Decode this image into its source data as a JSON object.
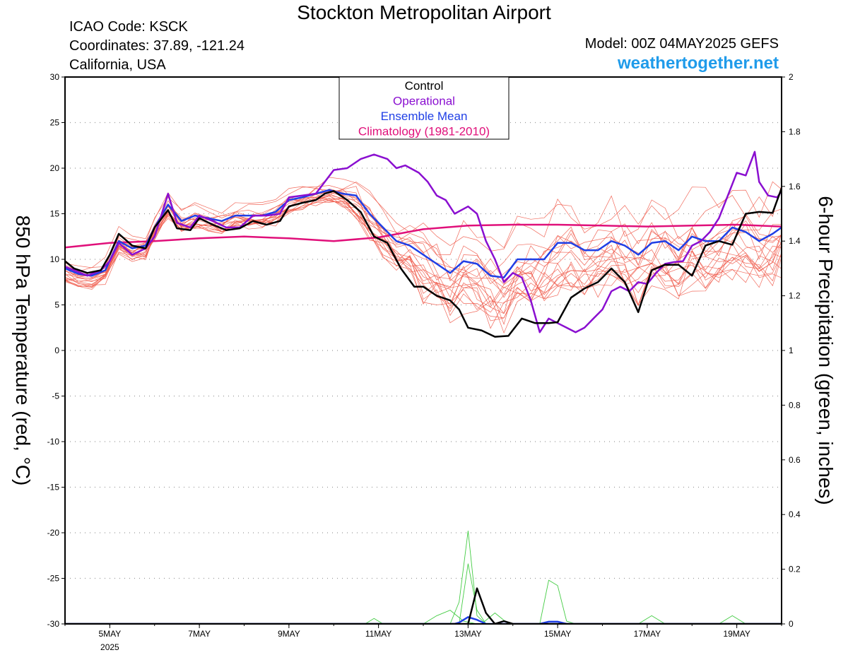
{
  "header": {
    "title": "Stockton Metropolitan Airport",
    "icao": "ICAO Code: KSCK",
    "coords": "Coordinates: 37.89, -121.24",
    "region": "California, USA",
    "model": "Model: 00Z 04MAY2025 GEFS",
    "brand": "weathertogether.net"
  },
  "chart_data": {
    "type": "line",
    "y_left_label": "850 hPa Temperature (red, °C)",
    "y_right_label": "6-hour Precipitation (green, inches)",
    "y_left_range": [
      -30,
      30
    ],
    "y_right_range": [
      0,
      2
    ],
    "y_left_ticks": [
      "30",
      "25",
      "20",
      "15",
      "10",
      "5",
      "0",
      "-5",
      "-10",
      "-15",
      "-20",
      "-25",
      "-30"
    ],
    "y_right_ticks": [
      "2",
      "1.8",
      "1.6",
      "1.4",
      "1.2",
      "1",
      "0.8",
      "0.6",
      "0.4",
      "0.2",
      "0"
    ],
    "x_range_days": [
      4.0,
      20.0
    ],
    "x_ticks": [
      {
        "day": 5,
        "label": "5MAY",
        "sub": "2025"
      },
      {
        "day": 7,
        "label": "7MAY",
        "sub": ""
      },
      {
        "day": 9,
        "label": "9MAY",
        "sub": ""
      },
      {
        "day": 11,
        "label": "11MAY",
        "sub": ""
      },
      {
        "day": 13,
        "label": "13MAY",
        "sub": ""
      },
      {
        "day": 15,
        "label": "15MAY",
        "sub": ""
      },
      {
        "day": 17,
        "label": "17MAY",
        "sub": ""
      },
      {
        "day": 19,
        "label": "19MAY",
        "sub": ""
      }
    ],
    "grid": "horizontal dotted",
    "legend_position": "top-center",
    "legend": [
      {
        "label": "Control",
        "color": "#000000"
      },
      {
        "label": "Operational",
        "color": "#8a0fd0"
      },
      {
        "label": "Ensemble Mean",
        "color": "#1f3fe6"
      },
      {
        "label": "Climatology (1981-2010)",
        "color": "#e0107a"
      }
    ],
    "colors": {
      "members": "#f05a4a",
      "control": "#000000",
      "operational": "#8a0fd0",
      "mean": "#1f3fe6",
      "climatology": "#e0107a",
      "precip_members": "#44cc44",
      "precip_mean": "#1f3fe6",
      "precip_control": "#000000"
    },
    "series": [
      {
        "key": "control",
        "x_day": [
          4.0,
          4.2,
          4.5,
          4.8,
          5.0,
          5.2,
          5.5,
          5.8,
          6.0,
          6.3,
          6.5,
          6.8,
          7.0,
          7.3,
          7.6,
          7.9,
          8.2,
          8.5,
          8.8,
          9.0,
          9.3,
          9.6,
          9.8,
          10.0,
          10.3,
          10.6,
          10.9,
          11.2,
          11.5,
          11.8,
          12.0,
          12.3,
          12.6,
          12.8,
          13.0,
          13.3,
          13.6,
          13.9,
          14.2,
          14.5,
          14.8,
          15.0,
          15.3,
          15.6,
          15.9,
          16.2,
          16.5,
          16.8,
          17.1,
          17.4,
          17.7,
          18.0,
          18.3,
          18.6,
          18.9,
          19.2,
          19.5,
          19.8,
          20.0
        ],
        "y": [
          9.8,
          9.0,
          8.5,
          8.8,
          10.5,
          12.8,
          11.5,
          11.2,
          13.5,
          15.4,
          13.4,
          13.2,
          14.5,
          13.8,
          13.2,
          13.4,
          14.2,
          13.8,
          14.2,
          15.8,
          16.2,
          16.5,
          17.2,
          17.5,
          16.5,
          15.2,
          12.5,
          11.8,
          9.0,
          7.0,
          7.0,
          6.0,
          5.5,
          4.5,
          2.5,
          2.2,
          1.5,
          1.6,
          3.5,
          3.0,
          3.0,
          3.1,
          5.8,
          6.8,
          7.5,
          9.0,
          7.5,
          4.2,
          8.8,
          9.4,
          9.4,
          8.2,
          11.5,
          12.0,
          11.6,
          15.0,
          15.2,
          15.1,
          17.8
        ]
      },
      {
        "key": "operational",
        "x_day": [
          4.0,
          4.2,
          4.5,
          4.8,
          5.0,
          5.2,
          5.5,
          5.8,
          6.0,
          6.3,
          6.5,
          6.8,
          7.0,
          7.3,
          7.6,
          7.9,
          8.2,
          8.5,
          8.8,
          9.0,
          9.3,
          9.6,
          9.8,
          10.0,
          10.3,
          10.6,
          10.9,
          11.2,
          11.4,
          11.6,
          11.9,
          12.1,
          12.3,
          12.5,
          12.7,
          13.0,
          13.2,
          13.4,
          13.6,
          13.8,
          14.0,
          14.2,
          14.4,
          14.6,
          14.8,
          15.0,
          15.2,
          15.4,
          15.6,
          15.8,
          16.0,
          16.2,
          16.4,
          16.6,
          16.8,
          17.0,
          17.2,
          17.4,
          17.6,
          17.8,
          18.0,
          18.2,
          18.4,
          18.6,
          18.8,
          19.0,
          19.2,
          19.4,
          19.5,
          19.7,
          19.9,
          20.0
        ],
        "y": [
          9.2,
          8.8,
          8.2,
          8.8,
          9.8,
          11.8,
          10.5,
          11.2,
          12.5,
          17.2,
          14.0,
          13.5,
          14.8,
          14.2,
          13.5,
          13.5,
          14.8,
          14.8,
          15.0,
          16.8,
          17.0,
          17.2,
          18.5,
          19.8,
          20.0,
          21.0,
          21.5,
          21.0,
          20.0,
          20.3,
          19.5,
          18.5,
          17.0,
          16.5,
          15.0,
          15.8,
          15.0,
          12.0,
          10.0,
          7.5,
          8.5,
          8.0,
          5.5,
          2.0,
          3.5,
          3.0,
          2.5,
          2.0,
          2.5,
          3.5,
          4.5,
          6.5,
          7.0,
          6.5,
          7.5,
          7.3,
          8.5,
          9.5,
          9.7,
          9.8,
          11.5,
          12.0,
          13.0,
          14.5,
          17.0,
          19.5,
          19.2,
          21.8,
          18.5,
          17.0,
          16.8,
          17.5
        ]
      },
      {
        "key": "mean",
        "x_day": [
          4.0,
          4.3,
          4.6,
          4.9,
          5.2,
          5.5,
          5.8,
          6.0,
          6.3,
          6.6,
          6.9,
          7.2,
          7.5,
          7.8,
          8.1,
          8.4,
          8.7,
          9.0,
          9.3,
          9.6,
          9.9,
          10.2,
          10.5,
          10.8,
          11.1,
          11.4,
          11.7,
          12.0,
          12.3,
          12.6,
          12.9,
          13.2,
          13.5,
          13.8,
          14.1,
          14.4,
          14.7,
          15.0,
          15.3,
          15.6,
          15.9,
          16.2,
          16.5,
          16.8,
          17.1,
          17.4,
          17.7,
          18.0,
          18.3,
          18.6,
          18.9,
          19.2,
          19.5,
          19.8,
          20.0
        ],
        "y": [
          9.0,
          8.4,
          8.2,
          8.8,
          12.0,
          11.2,
          11.5,
          13.5,
          16.0,
          14.2,
          14.8,
          14.5,
          14.2,
          14.8,
          14.8,
          14.8,
          15.2,
          16.5,
          16.8,
          17.2,
          17.6,
          17.2,
          17.0,
          15.0,
          13.5,
          12.0,
          11.5,
          10.5,
          9.5,
          8.5,
          9.8,
          9.5,
          8.2,
          8.0,
          10.0,
          10.0,
          10.0,
          11.8,
          11.8,
          11.0,
          11.0,
          12.0,
          11.5,
          10.5,
          11.8,
          12.0,
          11.0,
          12.5,
          12.0,
          12.0,
          13.5,
          13.0,
          12.0,
          12.8,
          13.5
        ]
      },
      {
        "key": "climatology",
        "x_day": [
          4.0,
          5.0,
          6.0,
          7.0,
          8.0,
          9.0,
          10.0,
          11.0,
          12.0,
          13.0,
          14.0,
          15.0,
          16.0,
          17.0,
          18.0,
          19.0,
          20.0
        ],
        "y": [
          11.3,
          11.8,
          12.0,
          12.3,
          12.5,
          12.3,
          12.0,
          12.4,
          13.3,
          13.7,
          13.8,
          13.8,
          13.7,
          13.6,
          13.7,
          13.8,
          13.6
        ]
      },
      {
        "key": "precip_control",
        "x_day": [
          4.0,
          12.8,
          13.0,
          13.2,
          13.4,
          13.6,
          13.8,
          14.0,
          14.5,
          20.0
        ],
        "y": [
          0,
          0,
          0.0,
          0.13,
          0.04,
          0.0,
          0.01,
          0,
          0,
          0
        ]
      },
      {
        "key": "precip_mean",
        "x_day": [
          4.0,
          12.7,
          12.8,
          13.0,
          13.2,
          13.4,
          14.6,
          14.8,
          15.0,
          15.2,
          20.0
        ],
        "y": [
          0,
          0,
          0.005,
          0.025,
          0.015,
          0.0,
          0.0,
          0.008,
          0.008,
          0.0,
          0
        ]
      },
      {
        "key": "precip_member_1",
        "x_day": [
          4.0,
          12.6,
          12.8,
          13.0,
          13.2,
          13.4,
          20.0
        ],
        "y": [
          0,
          0,
          0.08,
          0.34,
          0.03,
          0,
          0
        ]
      },
      {
        "key": "precip_member_2",
        "x_day": [
          4.0,
          12.8,
          13.0,
          13.2,
          13.4,
          20.0
        ],
        "y": [
          0,
          0,
          0.22,
          0.05,
          0,
          0
        ]
      },
      {
        "key": "precip_member_3",
        "x_day": [
          4.0,
          14.6,
          14.8,
          15.0,
          15.2,
          15.4,
          20.0
        ],
        "y": [
          0,
          0,
          0.16,
          0.14,
          0.01,
          0,
          0
        ]
      },
      {
        "key": "precip_member_4",
        "x_day": [
          4.0,
          12.0,
          12.3,
          12.6,
          12.9,
          13.2,
          20.0
        ],
        "y": [
          0,
          0,
          0.03,
          0.05,
          0.01,
          0,
          0
        ]
      },
      {
        "key": "precip_member_5",
        "x_day": [
          4.0,
          10.7,
          10.9,
          11.1,
          20.0
        ],
        "y": [
          0,
          0,
          0.02,
          0,
          0
        ]
      },
      {
        "key": "precip_member_6",
        "x_day": [
          4.0,
          16.8,
          17.1,
          17.4,
          20.0
        ],
        "y": [
          0,
          0,
          0.03,
          0,
          0
        ]
      },
      {
        "key": "precip_member_7",
        "x_day": [
          4.0,
          18.6,
          18.9,
          19.2,
          20.0
        ],
        "y": [
          0,
          0,
          0.03,
          0,
          0
        ]
      },
      {
        "key": "precip_member_8",
        "x_day": [
          4.0,
          13.3,
          13.6,
          13.9,
          20.0
        ],
        "y": [
          0,
          0,
          0.04,
          0.0,
          0
        ]
      }
    ]
  }
}
